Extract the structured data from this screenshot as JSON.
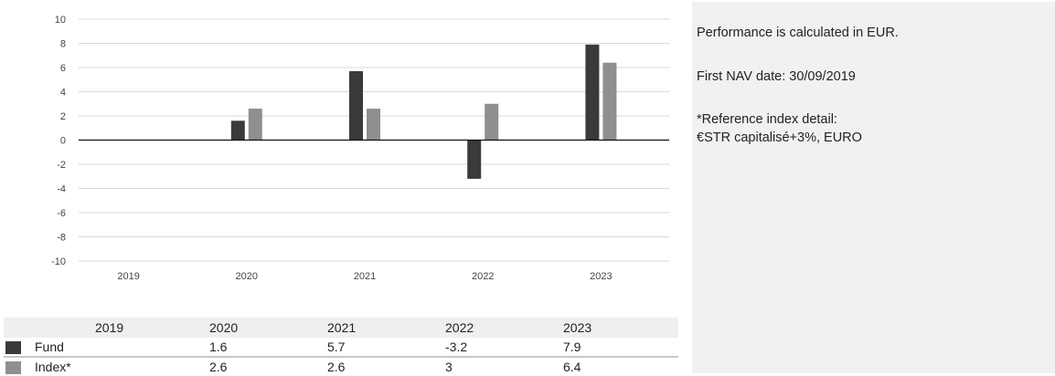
{
  "chart_data": {
    "type": "bar",
    "categories": [
      "2019",
      "2020",
      "2021",
      "2022",
      "2023"
    ],
    "series": [
      {
        "name": "Fund",
        "values": [
          null,
          1.6,
          5.7,
          -3.2,
          7.9
        ],
        "color": "#3a3a3a"
      },
      {
        "name": "Index*",
        "values": [
          null,
          2.6,
          2.6,
          3,
          6.4
        ],
        "color": "#8f8f8f"
      }
    ],
    "yticks": [
      "10",
      "8",
      "6",
      "4",
      "2",
      "0",
      "-2",
      "-4",
      "-6",
      "-8",
      "-10"
    ],
    "ylim": [
      -10,
      10
    ],
    "grid": true,
    "legend": "table-below"
  },
  "table": {
    "header": [
      "2019",
      "2020",
      "2021",
      "2022",
      "2023"
    ],
    "rows": [
      {
        "name": "Fund",
        "color": "#3a3a3a",
        "cells": [
          "",
          "1.6",
          "5.7",
          "-3.2",
          "7.9"
        ]
      },
      {
        "name": "Index*",
        "color": "#8f8f8f",
        "cells": [
          "",
          "2.6",
          "2.6",
          "3",
          "6.4"
        ]
      }
    ]
  },
  "panel": {
    "line1": "Performance is calculated in EUR.",
    "line2": "First NAV date: 30/09/2019",
    "line3": "*Reference index detail:",
    "line4": "€STR capitalisé+3%, EURO"
  }
}
